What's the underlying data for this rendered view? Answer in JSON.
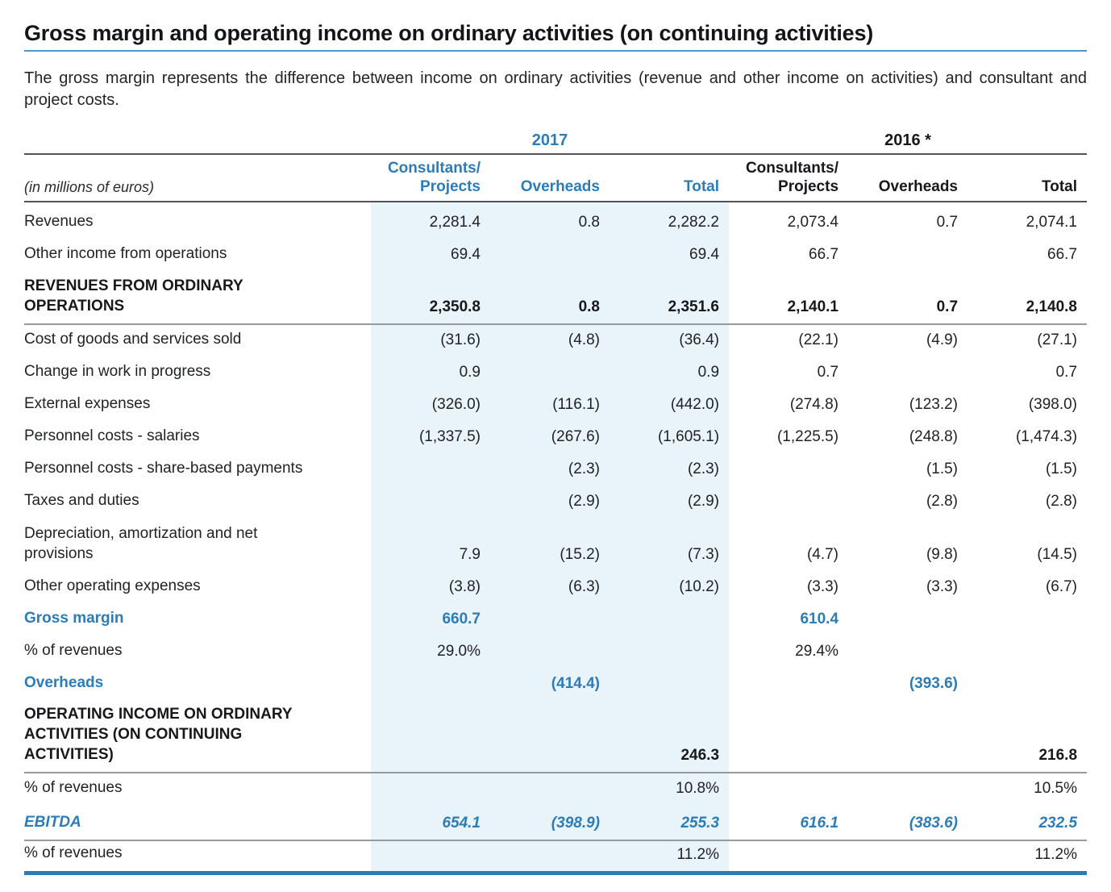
{
  "page": {
    "title": "Gross margin and operating income on ordinary activities (on continuing activities)",
    "intro": "The gross margin represents the difference between income on ordinary activities (revenue and other income on activities) and consultant and project costs."
  },
  "colors": {
    "accent_blue": "#2e7cb4",
    "highlight_band": "#e9f3fa",
    "title_underline": "#4d96c8",
    "rule_dark": "#515257",
    "rule_light": "#97999c"
  },
  "table": {
    "unit_label": "(in millions of euros)",
    "year_groups": [
      {
        "label": "2017"
      },
      {
        "label": "2016 *"
      }
    ],
    "columns_2017": [
      "Consultants/\nProjects",
      "Overheads",
      "Total"
    ],
    "columns_2016": [
      "Consultants/\nProjects",
      "Overheads",
      "Total"
    ],
    "rows": [
      {
        "label": "Revenues",
        "values": [
          "2,281.4",
          "0.8",
          "2,282.2",
          "2,073.4",
          "0.7",
          "2,074.1"
        ]
      },
      {
        "label": "Other income from operations",
        "values": [
          "69.4",
          "",
          "69.4",
          "66.7",
          "",
          "66.7"
        ]
      },
      {
        "label": "REVENUES FROM ORDINARY\nOPERATIONS",
        "emphasis": "bold",
        "lines": 2,
        "rule_below": true,
        "values": [
          "2,350.8",
          "0.8",
          "2,351.6",
          "2,140.1",
          "0.7",
          "2,140.8"
        ]
      },
      {
        "label": "Cost of goods and services sold",
        "values": [
          "(31.6)",
          "(4.8)",
          "(36.4)",
          "(22.1)",
          "(4.9)",
          "(27.1)"
        ]
      },
      {
        "label": "Change in work in progress",
        "values": [
          "0.9",
          "",
          "0.9",
          "0.7",
          "",
          "0.7"
        ]
      },
      {
        "label": "External expenses",
        "values": [
          "(326.0)",
          "(116.1)",
          "(442.0)",
          "(274.8)",
          "(123.2)",
          "(398.0)"
        ]
      },
      {
        "label": "Personnel costs - salaries",
        "values": [
          "(1,337.5)",
          "(267.6)",
          "(1,605.1)",
          "(1,225.5)",
          "(248.8)",
          "(1,474.3)"
        ]
      },
      {
        "label": "Personnel costs - share-based payments",
        "values": [
          "",
          "(2.3)",
          "(2.3)",
          "",
          "(1.5)",
          "(1.5)"
        ]
      },
      {
        "label": "Taxes and duties",
        "values": [
          "",
          "(2.9)",
          "(2.9)",
          "",
          "(2.8)",
          "(2.8)"
        ]
      },
      {
        "label": "Depreciation, amortization and net\nprovisions",
        "lines": 2,
        "values": [
          "7.9",
          "(15.2)",
          "(7.3)",
          "(4.7)",
          "(9.8)",
          "(14.5)"
        ]
      },
      {
        "label": "Other operating expenses",
        "values": [
          "(3.8)",
          "(6.3)",
          "(10.2)",
          "(3.3)",
          "(3.3)",
          "(6.7)"
        ]
      },
      {
        "label": "Gross margin",
        "emphasis": "blue",
        "values": [
          "660.7",
          "",
          "",
          "610.4",
          "",
          ""
        ]
      },
      {
        "label": "% of revenues",
        "values": [
          "29.0%",
          "",
          "",
          "29.4%",
          "",
          ""
        ]
      },
      {
        "label": "Overheads",
        "emphasis": "blue",
        "values": [
          "",
          "(414.4)",
          "",
          "",
          "(393.6)",
          ""
        ]
      },
      {
        "label": "OPERATING INCOME ON ORDINARY\nACTIVITIES (ON CONTINUING\nACTIVITIES)",
        "emphasis": "bold",
        "lines": 3,
        "rule_below": true,
        "values": [
          "",
          "",
          "246.3",
          "",
          "",
          "216.8"
        ]
      },
      {
        "label": "% of revenues",
        "values": [
          "",
          "",
          "10.8%",
          "",
          "",
          "10.5%"
        ]
      },
      {
        "label": "EBITDA",
        "emphasis": "ebitda",
        "rule_below": true,
        "values": [
          "654.1",
          "(398.9)",
          "255.3",
          "616.1",
          "(383.6)",
          "232.5"
        ]
      },
      {
        "label": "% of revenues",
        "values": [
          "",
          "",
          "11.2%",
          "",
          "",
          "11.2%"
        ]
      }
    ]
  }
}
